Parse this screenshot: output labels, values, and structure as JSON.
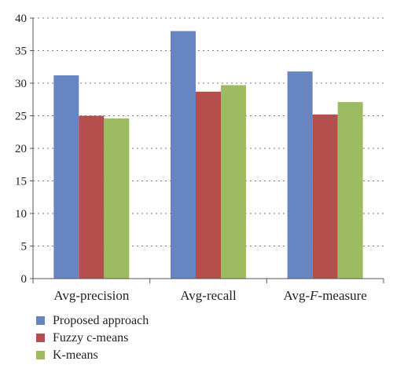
{
  "chart_data": {
    "type": "bar",
    "categories": [
      "Avg-precision",
      "Avg-recall",
      "Avg-F-measure"
    ],
    "category_parts": [
      {
        "pre": "Avg-precision",
        "italic": "",
        "post": ""
      },
      {
        "pre": "Avg-recall",
        "italic": "",
        "post": ""
      },
      {
        "pre": "Avg-",
        "italic": "F",
        "post": "-measure"
      }
    ],
    "series": [
      {
        "name": "Proposed approach",
        "color": "#6785c1",
        "values": [
          31.2,
          38.0,
          31.8
        ]
      },
      {
        "name": "Fuzzy c-means",
        "color": "#b44f4d",
        "values": [
          25.0,
          28.7,
          25.2
        ]
      },
      {
        "name": "K-means",
        "color": "#9dbb61",
        "values": [
          24.6,
          29.7,
          27.1
        ]
      }
    ],
    "title": "",
    "xlabel": "",
    "ylabel": "",
    "ylim": [
      0,
      40
    ],
    "yticks": [
      "0",
      "5",
      "10",
      "15",
      "20",
      "25",
      "30",
      "35",
      "40"
    ],
    "grid": true,
    "legend_position": "bottom-left"
  }
}
